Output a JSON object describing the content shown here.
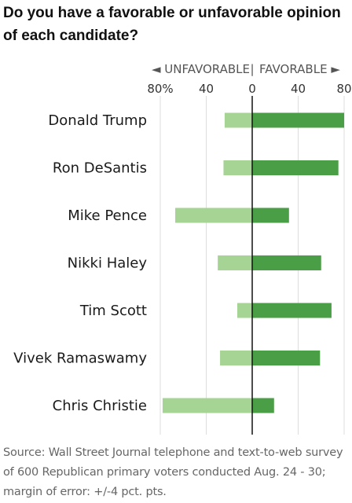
{
  "title": "Do you have a favorable or unfavorable opinion of each candidate?",
  "source": "Source: Wall Street Journal telephone and text-to-web survey of 600 Republican primary voters conducted Aug. 24 - 30; margin of error: +/-4 pct. pts.",
  "axis_header": {
    "left": "◄ UNFAVORABLE",
    "divider": "|",
    "right": "FAVORABLE ►"
  },
  "colors": {
    "favorable": "#4a9e45",
    "unfavorable": "#a6d494",
    "grid": "#dddddd",
    "zero_line": "#111111"
  },
  "chart_data": {
    "type": "bar",
    "orientation": "horizontal-diverging",
    "categories": [
      "Donald Trump",
      "Ron DeSantis",
      "Mike Pence",
      "Nikki Haley",
      "Tim Scott",
      "Vivek Ramaswamy",
      "Chris Christie"
    ],
    "series": [
      {
        "name": "Unfavorable",
        "values": [
          24,
          25,
          67,
          30,
          13,
          28,
          78
        ]
      },
      {
        "name": "Favorable",
        "values": [
          80,
          75,
          32,
          60,
          69,
          59,
          19
        ]
      }
    ],
    "xlim": [
      -80,
      80
    ],
    "tick_values": [
      -80,
      -40,
      0,
      40,
      80
    ],
    "tick_labels": [
      "80%",
      "40",
      "0",
      "40",
      "80"
    ],
    "grid": true
  }
}
